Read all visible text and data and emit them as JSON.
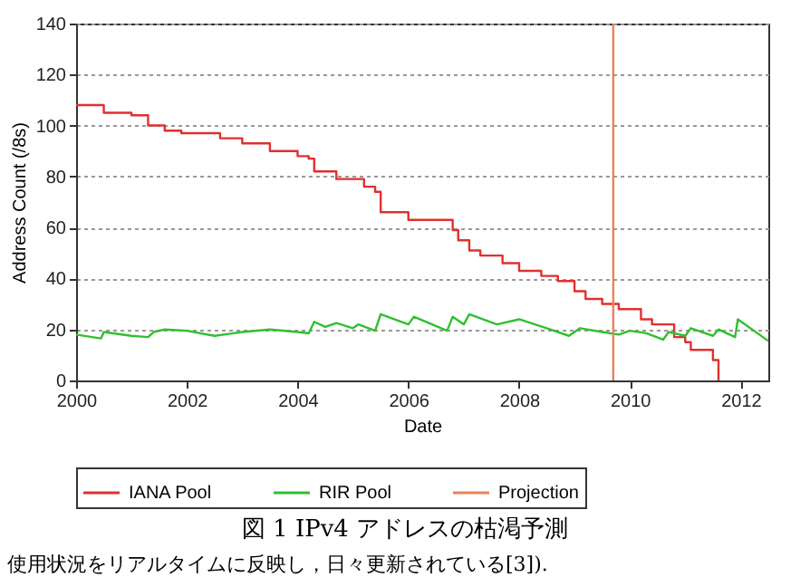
{
  "chart_data": {
    "type": "line",
    "title": "図 1 IPv4 アドレスの枯渇予測",
    "xlabel": "Date",
    "ylabel": "Address Count (/8s)",
    "xlim": [
      2000,
      2012.5
    ],
    "xticks": [
      2000,
      2002,
      2004,
      2006,
      2008,
      2010,
      2012
    ],
    "ylim": [
      0,
      140
    ],
    "yticks": [
      0,
      20,
      40,
      60,
      80,
      100,
      120,
      140
    ],
    "grid": "y",
    "legend": "bottom",
    "annotations": [
      "使用状況をリアルタイムに反映し，日々更新されている[3])."
    ],
    "series": [
      {
        "name": "IANA Pool",
        "type": "step",
        "color": "#e03030",
        "x": [
          2000.0,
          2000.5,
          2001.0,
          2001.3,
          2001.6,
          2001.9,
          2002.6,
          2003.0,
          2003.5,
          2004.0,
          2004.2,
          2004.3,
          2004.7,
          2005.2,
          2005.4,
          2005.5,
          2006.0,
          2006.8,
          2006.9,
          2007.1,
          2007.3,
          2007.7,
          2008.0,
          2008.4,
          2008.7,
          2009.0,
          2009.2,
          2009.5,
          2009.8,
          2010.2,
          2010.4,
          2010.8,
          2011.0,
          2011.1,
          2011.5,
          2011.6
        ],
        "values": [
          108,
          105,
          104,
          100,
          98,
          97,
          95,
          93,
          90,
          88,
          87,
          82,
          79,
          76,
          74,
          66,
          63,
          59,
          55,
          51,
          49,
          46,
          43,
          41,
          39,
          35,
          32,
          30,
          28,
          24,
          22,
          17,
          15,
          12,
          8,
          0
        ]
      },
      {
        "name": "RIR Pool",
        "color": "#30c030",
        "x": [
          2000.0,
          2000.45,
          2000.5,
          2001.0,
          2001.3,
          2001.4,
          2001.6,
          2002.0,
          2002.5,
          2003.0,
          2003.5,
          2004.0,
          2004.2,
          2004.3,
          2004.5,
          2004.7,
          2005.0,
          2005.1,
          2005.4,
          2005.5,
          2006.0,
          2006.1,
          2006.7,
          2006.8,
          2007.0,
          2007.1,
          2007.6,
          2008.0,
          2008.5,
          2008.9,
          2009.1,
          2009.5,
          2009.8,
          2010.0,
          2010.3,
          2010.6,
          2010.7,
          2011.0,
          2011.1,
          2011.5,
          2011.6,
          2011.9,
          2011.95,
          2012.5
        ],
        "values": [
          18,
          16.5,
          19,
          17.5,
          17,
          19,
          20,
          19.5,
          17.5,
          19,
          20,
          19,
          18.5,
          23,
          21,
          22.5,
          20.5,
          22,
          19.5,
          26,
          22,
          25,
          19.5,
          25,
          22,
          26,
          22,
          24,
          20.5,
          17.5,
          20.5,
          19,
          18,
          19.5,
          18.5,
          16,
          19,
          17.5,
          20.5,
          17.5,
          20,
          17,
          24,
          15.5
        ]
      },
      {
        "name": "Projection",
        "color": "#e8845a",
        "x": [
          2009.7,
          2009.7
        ],
        "values": [
          0,
          140
        ]
      }
    ]
  }
}
